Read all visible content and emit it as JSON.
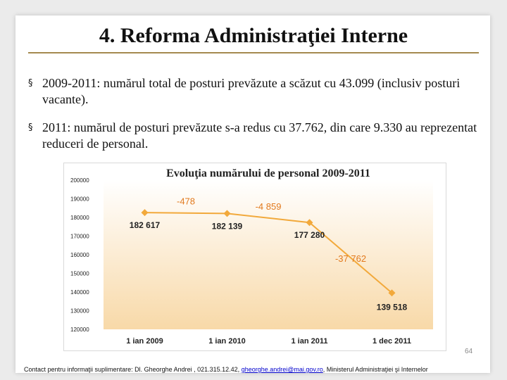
{
  "title": "4. Reforma Administraţiei Interne",
  "bullets": [
    "2009-2011: numărul total de posturi prevăzute a scăzut cu 43.099 (inclusiv posturi vacante).",
    "2011: numărul de posturi prevăzute s-a redus cu 37.762, din care 9.330 au reprezentat reduceri de personal."
  ],
  "bullet_marker": "§",
  "chart_data": {
    "type": "line",
    "title": "Evoluţia numărului de personal 2009-2011",
    "categories": [
      "1 ian 2009",
      "1 ian 2010",
      "1 ian 2011",
      "1 dec 2011"
    ],
    "series": [
      {
        "values": [
          182617,
          182139,
          177280,
          139518
        ]
      }
    ],
    "data_labels": [
      "182 617",
      "182 139",
      "177 280",
      "139 518"
    ],
    "change_labels": [
      "-478",
      "-4 859",
      "-37 762"
    ],
    "ylim": [
      120000,
      200000
    ],
    "yticks": [
      "120000",
      "130000",
      "140000",
      "150000",
      "160000",
      "170000",
      "180000",
      "190000",
      "200000"
    ],
    "grid": false,
    "colors": {
      "line": "#f2a93b",
      "marker": "#f2a93b",
      "plot_bg_top": "#ffffff",
      "plot_bg_bottom": "#f8d9a8",
      "change_label": "#e27a1e"
    }
  },
  "page_number": "64",
  "footer": {
    "prefix": "Contact pentru informaţii suplimentare: Dl. Gheorghe Andrei , 021.315.12.42, ",
    "email": "gheorghe.andrei@mai.gov.ro",
    "suffix": ", Ministerul Administraţiei şi Internelor"
  }
}
